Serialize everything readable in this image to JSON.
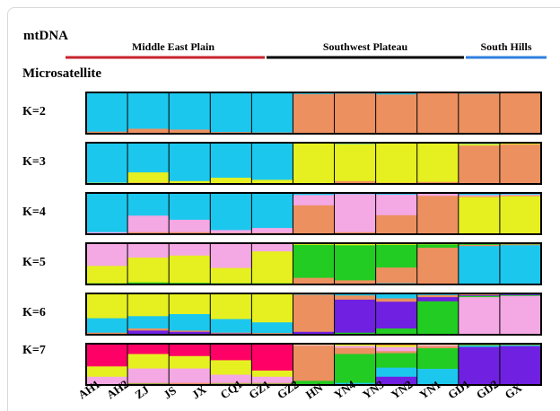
{
  "figure": {
    "mtdna_label": "mtDNA",
    "microsatellite_label": "Microsatellite",
    "regions": [
      {
        "name": "Middle East Plain",
        "color": "#c8232c"
      },
      {
        "name": "Southwest Plateau",
        "color": "#000000"
      },
      {
        "name": "South Hills",
        "color": "#2f7fe0"
      }
    ]
  },
  "chart_data": {
    "type": "bar",
    "stacked": true,
    "layout": "structure-plot",
    "populations": [
      "AH1",
      "AH2",
      "ZJ",
      "JS",
      "JX",
      "CQ1",
      "GZ1",
      "GZ2",
      "HN",
      "YN4",
      "YN3",
      "YN2",
      "YN1",
      "GD1",
      "GD2",
      "GX"
    ],
    "population_columns": [
      0,
      1,
      1,
      1,
      2,
      3,
      3,
      4,
      5,
      5,
      6,
      7,
      8,
      8,
      9,
      10
    ],
    "rows": [
      {
        "label": "K=2",
        "colors": [
          "#1cc7ee",
          "#ec9060"
        ],
        "columns": [
          [
            0.95,
            0.05
          ],
          [
            0.88,
            0.12
          ],
          [
            0.9,
            0.1
          ],
          [
            0.96,
            0.04
          ],
          [
            0.97,
            0.03
          ],
          [
            0.04,
            0.96
          ],
          [
            0.03,
            0.97
          ],
          [
            0.05,
            0.95
          ],
          [
            0.02,
            0.98
          ],
          [
            0.03,
            0.97
          ],
          [
            0.02,
            0.98
          ]
        ]
      },
      {
        "label": "K=3",
        "colors": [
          "#1cc7ee",
          "#e6f020",
          "#ec9060"
        ],
        "columns": [
          [
            0.97,
            0.02,
            0.01
          ],
          [
            0.72,
            0.25,
            0.03
          ],
          [
            0.93,
            0.05,
            0.02
          ],
          [
            0.85,
            0.13,
            0.02
          ],
          [
            0.9,
            0.08,
            0.02
          ],
          [
            0.02,
            0.96,
            0.02
          ],
          [
            0.03,
            0.9,
            0.07
          ],
          [
            0.02,
            0.95,
            0.03
          ],
          [
            0.02,
            0.93,
            0.05
          ],
          [
            0.03,
            0.04,
            0.93
          ],
          [
            0.02,
            0.02,
            0.96
          ]
        ]
      },
      {
        "label": "K=4",
        "colors": [
          "#1cc7ee",
          "#f4a8e4",
          "#ec9060",
          "#e6f020"
        ],
        "columns": [
          [
            0.95,
            0.04,
            0.01,
            0.0
          ],
          [
            0.55,
            0.4,
            0.03,
            0.02
          ],
          [
            0.65,
            0.3,
            0.03,
            0.02
          ],
          [
            0.9,
            0.07,
            0.02,
            0.01
          ],
          [
            0.85,
            0.12,
            0.02,
            0.01
          ],
          [
            0.05,
            0.25,
            0.68,
            0.02
          ],
          [
            0.03,
            0.92,
            0.04,
            0.01
          ],
          [
            0.04,
            0.5,
            0.45,
            0.01
          ],
          [
            0.02,
            0.05,
            0.92,
            0.01
          ],
          [
            0.05,
            0.03,
            0.02,
            0.9
          ],
          [
            0.04,
            0.02,
            0.02,
            0.92
          ]
        ]
      },
      {
        "label": "K=5",
        "colors": [
          "#f4a8e4",
          "#e6f020",
          "#22cc22",
          "#ec9060",
          "#1cc7ee"
        ],
        "columns": [
          [
            0.55,
            0.42,
            0.02,
            0.01,
            0.0
          ],
          [
            0.35,
            0.6,
            0.03,
            0.02,
            0.0
          ],
          [
            0.3,
            0.66,
            0.02,
            0.02,
            0.0
          ],
          [
            0.6,
            0.37,
            0.02,
            0.01,
            0.0
          ],
          [
            0.2,
            0.77,
            0.02,
            0.01,
            0.0
          ],
          [
            0.02,
            0.02,
            0.8,
            0.14,
            0.02
          ],
          [
            0.02,
            0.03,
            0.85,
            0.08,
            0.02
          ],
          [
            0.02,
            0.02,
            0.55,
            0.38,
            0.03
          ],
          [
            0.01,
            0.02,
            0.08,
            0.87,
            0.02
          ],
          [
            0.01,
            0.01,
            0.02,
            0.03,
            0.93
          ],
          [
            0.0,
            0.01,
            0.02,
            0.02,
            0.95
          ]
        ]
      },
      {
        "label": "K=6",
        "colors": [
          "#e6f020",
          "#1cc7ee",
          "#ec9060",
          "#7020e0",
          "#22cc22",
          "#f4a8e4"
        ],
        "columns": [
          [
            0.6,
            0.35,
            0.03,
            0.01,
            0.01,
            0.0
          ],
          [
            0.55,
            0.3,
            0.05,
            0.08,
            0.02,
            0.0
          ],
          [
            0.5,
            0.4,
            0.03,
            0.05,
            0.02,
            0.0
          ],
          [
            0.62,
            0.33,
            0.02,
            0.01,
            0.02,
            0.0
          ],
          [
            0.7,
            0.26,
            0.02,
            0.01,
            0.01,
            0.0
          ],
          [
            0.01,
            0.02,
            0.9,
            0.05,
            0.02,
            0.0
          ],
          [
            0.02,
            0.03,
            0.1,
            0.8,
            0.05,
            0.0
          ],
          [
            0.02,
            0.1,
            0.08,
            0.65,
            0.15,
            0.0
          ],
          [
            0.01,
            0.03,
            0.05,
            0.1,
            0.81,
            0.0
          ],
          [
            0.01,
            0.01,
            0.02,
            0.02,
            0.03,
            0.91
          ],
          [
            0.0,
            0.01,
            0.01,
            0.02,
            0.02,
            0.94
          ]
        ]
      },
      {
        "label": "K=7",
        "colors": [
          "#ff0066",
          "#e6f020",
          "#f4a8e4",
          "#ec9060",
          "#22cc22",
          "#1cc7ee",
          "#7020e0"
        ],
        "columns": [
          [
            0.55,
            0.25,
            0.18,
            0.01,
            0.01,
            0.0,
            0.0
          ],
          [
            0.25,
            0.35,
            0.35,
            0.02,
            0.02,
            0.01,
            0.0
          ],
          [
            0.3,
            0.3,
            0.35,
            0.03,
            0.01,
            0.01,
            0.0
          ],
          [
            0.4,
            0.35,
            0.2,
            0.02,
            0.02,
            0.01,
            0.0
          ],
          [
            0.65,
            0.15,
            0.15,
            0.02,
            0.02,
            0.01,
            0.0
          ],
          [
            0.01,
            0.02,
            0.02,
            0.85,
            0.08,
            0.02,
            0.0
          ],
          [
            0.02,
            0.03,
            0.05,
            0.15,
            0.7,
            0.03,
            0.02
          ],
          [
            0.03,
            0.05,
            0.1,
            0.05,
            0.35,
            0.22,
            0.2
          ],
          [
            0.01,
            0.02,
            0.03,
            0.05,
            0.5,
            0.38,
            0.01
          ],
          [
            0.0,
            0.01,
            0.01,
            0.01,
            0.02,
            0.03,
            0.92
          ],
          [
            0.0,
            0.01,
            0.01,
            0.01,
            0.01,
            0.02,
            0.94
          ]
        ]
      }
    ]
  }
}
